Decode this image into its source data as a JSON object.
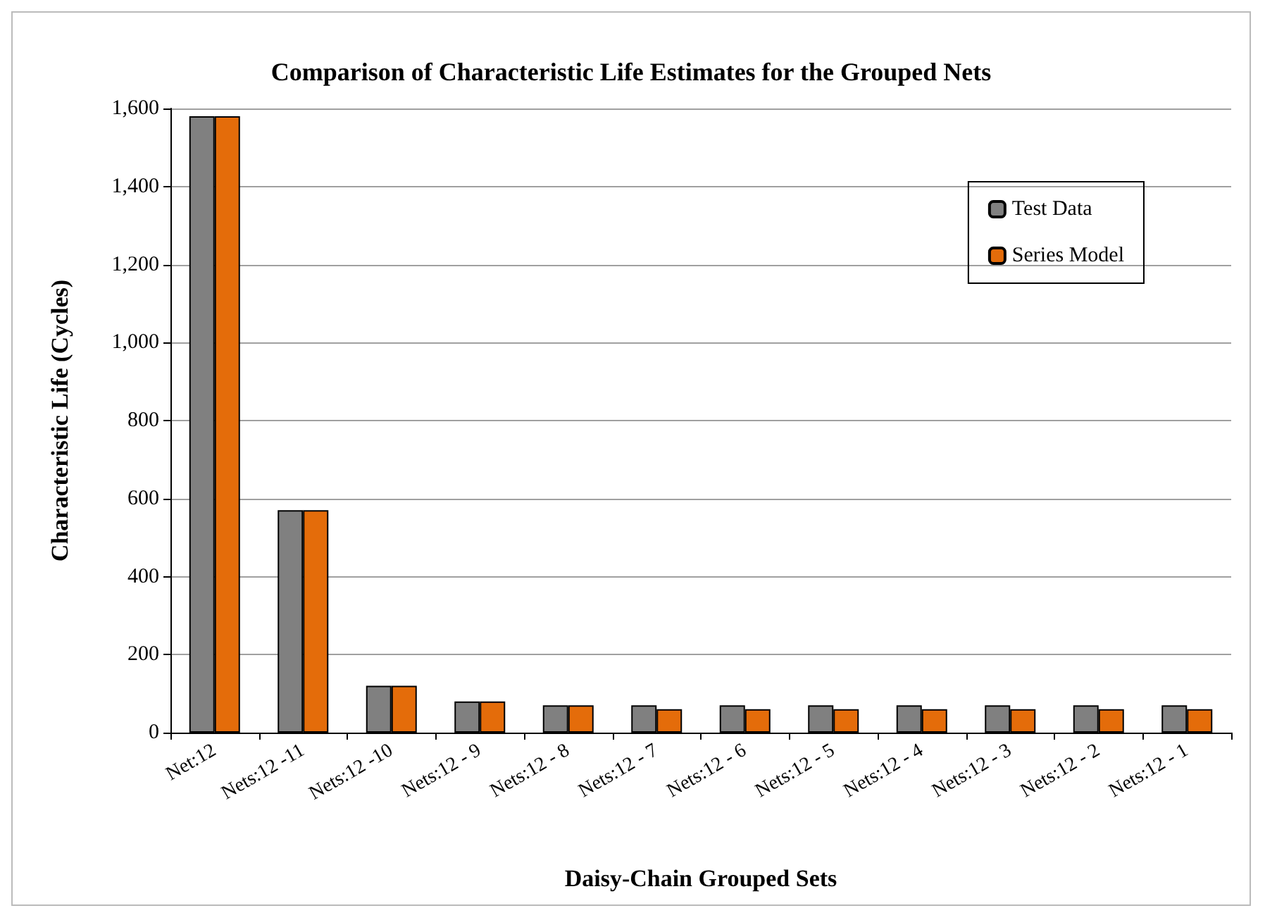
{
  "chart_data": {
    "type": "bar",
    "title": "Comparison of Characteristic Life Estimates for the Grouped Nets",
    "xlabel": "Daisy-Chain Grouped Sets",
    "ylabel": "Characteristic Life (Cycles)",
    "categories": [
      "Net:12",
      "Nets:12 -11",
      "Nets:12 -10",
      "Nets:12 - 9",
      "Nets:12 - 8",
      "Nets:12 - 7",
      "Nets:12 - 6",
      "Nets:12 - 5",
      "Nets:12 - 4",
      "Nets:12 - 3",
      "Nets:12 - 2",
      "Nets:12 - 1"
    ],
    "series": [
      {
        "name": "Test Data",
        "color": "#808080",
        "values": [
          1580,
          570,
          120,
          80,
          70,
          70,
          70,
          70,
          70,
          70,
          70,
          70
        ]
      },
      {
        "name": "Series Model",
        "color": "#e46c0a",
        "values": [
          1580,
          570,
          120,
          80,
          70,
          60,
          60,
          60,
          60,
          60,
          60,
          60
        ]
      }
    ],
    "ylim": [
      0,
      1600
    ],
    "yticks": [
      0,
      200,
      400,
      600,
      800,
      {
        "value": 1000,
        "label": "1,000"
      },
      {
        "value": 1200,
        "label": "1,200"
      },
      {
        "value": 1400,
        "label": "1,400"
      },
      {
        "value": 1600,
        "label": "1,600"
      }
    ],
    "grid": "y",
    "legend": "top right"
  }
}
